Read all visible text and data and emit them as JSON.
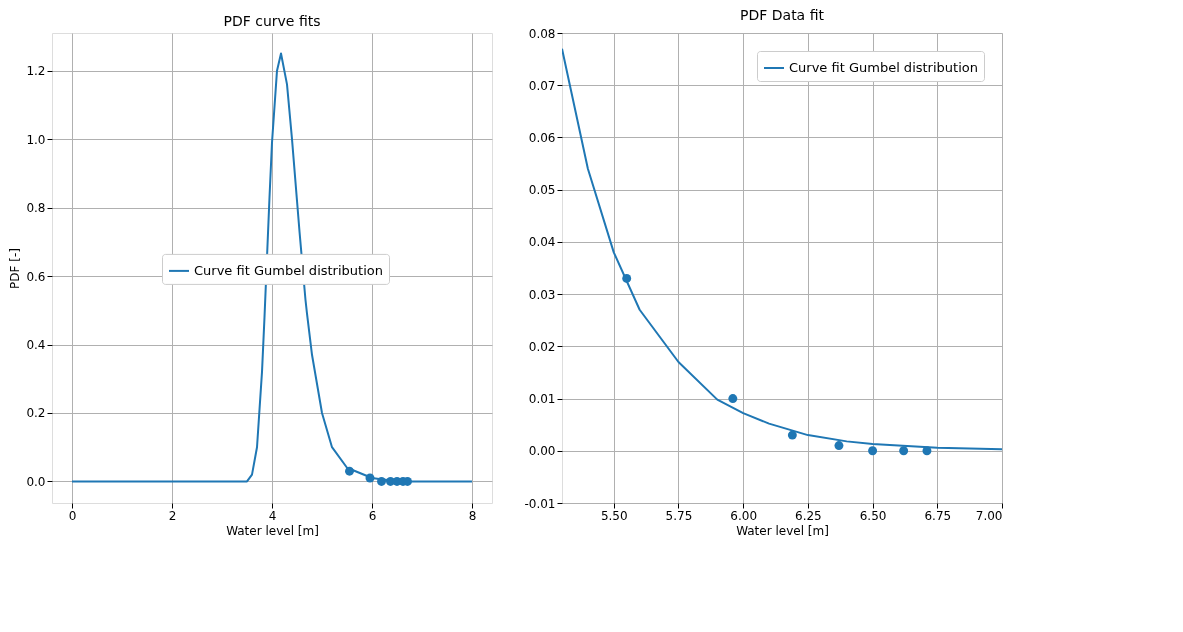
{
  "chart_data": [
    {
      "type": "line",
      "title": "PDF curve fits",
      "xlabel": "Water level [m]",
      "ylabel": "PDF [-]",
      "xlim": [
        -0.4,
        8.4
      ],
      "ylim": [
        -0.063,
        1.31
      ],
      "xticks": [
        0,
        2,
        4,
        6,
        8
      ],
      "yticks": [
        {
          "value": 0,
          "label": "0.0"
        },
        {
          "value": 0.2,
          "label": "0.2"
        },
        {
          "value": 0.4,
          "label": "0.4"
        },
        {
          "value": 0.6,
          "label": "0.6"
        },
        {
          "value": 0.8,
          "label": "0.8"
        },
        {
          "value": 1.0,
          "label": "1.0"
        },
        {
          "value": 1.2,
          "label": "1.2"
        }
      ],
      "grid": true,
      "legend": "center right",
      "series": [
        {
          "name": "Curve fit Gumbel distribution",
          "color": "#1f77b4",
          "x": [
            0,
            1,
            2,
            3,
            3.4,
            3.5,
            3.6,
            3.7,
            3.8,
            3.85,
            3.95,
            4.0,
            4.1,
            4.18,
            4.3,
            4.4,
            4.5,
            4.55,
            4.67,
            4.7,
            4.8,
            5.0,
            5.2,
            5.5,
            6.0,
            6.5,
            7.0,
            8.0
          ],
          "values": [
            0,
            0,
            0,
            0,
            0,
            0.0,
            0.02,
            0.1,
            0.32,
            0.48,
            0.83,
            0.99,
            1.2,
            1.25,
            1.16,
            1.0,
            0.82,
            0.73,
            0.53,
            0.49,
            0.37,
            0.2,
            0.1,
            0.04,
            0.01,
            0.0,
            0,
            0
          ]
        },
        {
          "type": "scatter",
          "color": "#1f77b4",
          "x": [
            5.55,
            5.96,
            6.19,
            6.37,
            6.5,
            6.62,
            6.71
          ],
          "values": [
            0.03,
            0.01,
            0.0,
            0.0,
            0.0,
            0.0,
            0.0
          ]
        }
      ]
    },
    {
      "type": "line",
      "title": "PDF Data fit",
      "xlabel": "Water level [m]",
      "xlim": [
        5.3,
        7.0
      ],
      "ylim": [
        -0.01,
        0.08
      ],
      "xticks": [
        {
          "value": 5.5,
          "label": "5.50"
        },
        {
          "value": 5.75,
          "label": "5.75"
        },
        {
          "value": 6.0,
          "label": "6.00"
        },
        {
          "value": 6.25,
          "label": "6.25"
        },
        {
          "value": 6.5,
          "label": "6.50"
        },
        {
          "value": 6.75,
          "label": "6.75"
        },
        {
          "value": 7.0,
          "label": "7.00"
        }
      ],
      "yticks": [
        {
          "value": -0.01,
          "label": "-0.01"
        },
        {
          "value": 0,
          "label": "0.00"
        },
        {
          "value": 0.01,
          "label": "0.01"
        },
        {
          "value": 0.02,
          "label": "0.02"
        },
        {
          "value": 0.03,
          "label": "0.03"
        },
        {
          "value": 0.04,
          "label": "0.04"
        },
        {
          "value": 0.05,
          "label": "0.05"
        },
        {
          "value": 0.06,
          "label": "0.06"
        },
        {
          "value": 0.07,
          "label": "0.07"
        },
        {
          "value": 0.08,
          "label": "0.08"
        }
      ],
      "grid": true,
      "legend": "top right",
      "series": [
        {
          "name": "Curve fit Gumbel distribution",
          "color": "#1f77b4",
          "x": [
            5.3,
            5.4,
            5.5,
            5.6,
            5.75,
            5.9,
            6.0,
            6.1,
            6.25,
            6.4,
            6.5,
            6.75,
            7.0
          ],
          "values": [
            0.077,
            0.054,
            0.038,
            0.027,
            0.017,
            0.0098,
            0.0072,
            0.0052,
            0.003,
            0.0018,
            0.0013,
            0.0006,
            0.0003
          ]
        },
        {
          "type": "scatter",
          "color": "#1f77b4",
          "x": [
            5.55,
            5.96,
            6.19,
            6.37,
            6.5,
            6.62,
            6.71
          ],
          "values": [
            0.033,
            0.01,
            0.003,
            0.001,
            0.0,
            0.0,
            0.0
          ]
        }
      ]
    }
  ]
}
